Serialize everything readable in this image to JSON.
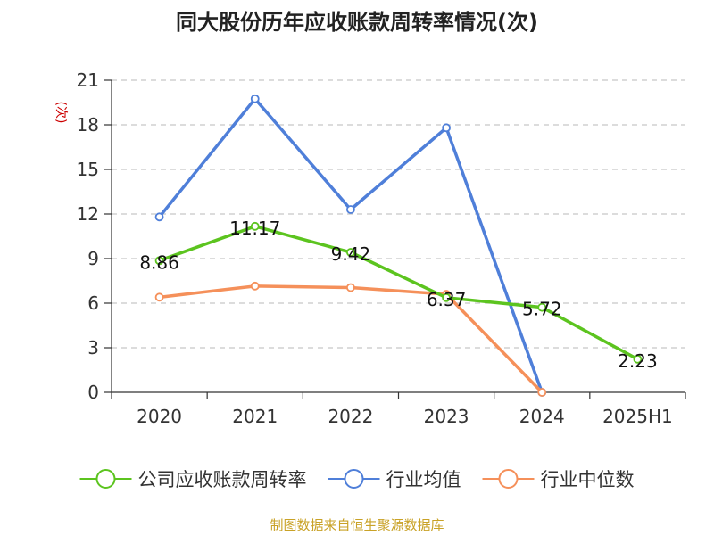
{
  "chart_data": {
    "type": "line",
    "title": "同大股份历年应收账款周转率情况(次)",
    "ylabel": "(次)",
    "categories": [
      "2020",
      "2021",
      "2022",
      "2023",
      "2024",
      "2025H1"
    ],
    "ylim": [
      0,
      21
    ],
    "yticks": [
      0,
      3,
      6,
      9,
      12,
      15,
      18,
      21
    ],
    "grid": true,
    "legend_position": "bottom",
    "series": [
      {
        "name": "公司应收账款周转率",
        "color": "#5cc41f",
        "values": [
          8.86,
          11.17,
          9.42,
          6.37,
          5.72,
          2.23
        ],
        "data_labels": [
          "8.86",
          "11.17",
          "9.42",
          "6.37",
          "5.72",
          "2.23"
        ]
      },
      {
        "name": "行业均值",
        "color": "#4f7fd9",
        "values": [
          11.8,
          19.75,
          12.3,
          17.8,
          0.0,
          null
        ],
        "data_labels": null
      },
      {
        "name": "行业中位数",
        "color": "#f5905a",
        "values": [
          6.4,
          7.15,
          7.05,
          6.6,
          0.0,
          null
        ],
        "data_labels": null
      }
    ],
    "source": "制图数据来自恒生聚源数据库",
    "colors": {
      "unit": "#cc0000",
      "source": "#c9a227",
      "axis": "#333333",
      "grid": "#c8c8c8"
    }
  }
}
